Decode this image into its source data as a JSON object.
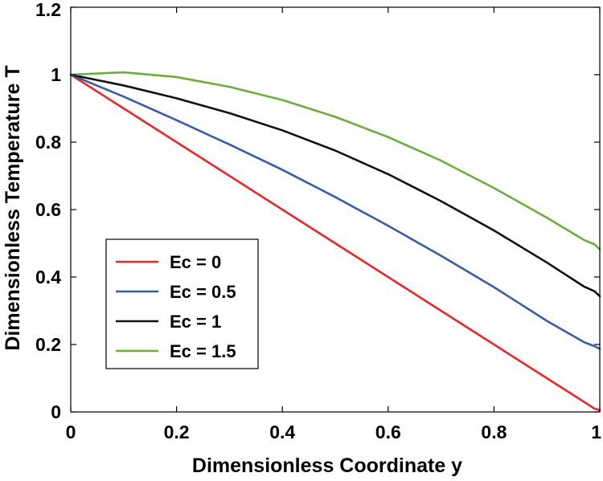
{
  "chart_data": {
    "type": "line",
    "title": "",
    "xlabel": "Dimensionless Coordinate y",
    "ylabel": "Dimensionless Temperature T",
    "xlim": [
      0,
      1
    ],
    "ylim": [
      0,
      1.2
    ],
    "xticks": [
      0,
      0.2,
      0.4,
      0.6,
      0.8,
      1
    ],
    "xtick_labels": [
      "0",
      "0.2",
      "0.4",
      "0.6",
      "0.8",
      "1"
    ],
    "yticks": [
      0,
      0.2,
      0.4,
      0.6,
      0.8,
      1,
      1.2
    ],
    "ytick_labels": [
      "0",
      "0.2",
      "0.4",
      "0.6",
      "0.8",
      "1",
      "1.2"
    ],
    "grid": false,
    "legend_position": "lower-left",
    "x": [
      0,
      0.1,
      0.2,
      0.3,
      0.4,
      0.5,
      0.6,
      0.7,
      0.8,
      0.9,
      0.97,
      0.99,
      1.0
    ],
    "series": [
      {
        "name": "Ec = 0",
        "color": "#e8282b",
        "values": [
          1.0,
          0.9,
          0.8,
          0.7,
          0.6,
          0.5,
          0.4,
          0.3,
          0.2,
          0.1,
          0.03,
          0.01,
          0.005
        ]
      },
      {
        "name": "Ec = 0.5",
        "color": "#3a5ba9",
        "values": [
          1.0,
          0.935,
          0.865,
          0.793,
          0.718,
          0.637,
          0.552,
          0.463,
          0.37,
          0.27,
          0.207,
          0.195,
          0.187
        ]
      },
      {
        "name": "Ec = 1",
        "color": "#111111",
        "values": [
          1.0,
          0.968,
          0.93,
          0.886,
          0.835,
          0.775,
          0.705,
          0.625,
          0.538,
          0.443,
          0.372,
          0.358,
          0.343
        ]
      },
      {
        "name": "Ec = 1.5",
        "color": "#6cae3c",
        "values": [
          1.0,
          1.007,
          0.993,
          0.964,
          0.925,
          0.875,
          0.815,
          0.745,
          0.664,
          0.576,
          0.51,
          0.497,
          0.482
        ]
      }
    ]
  }
}
